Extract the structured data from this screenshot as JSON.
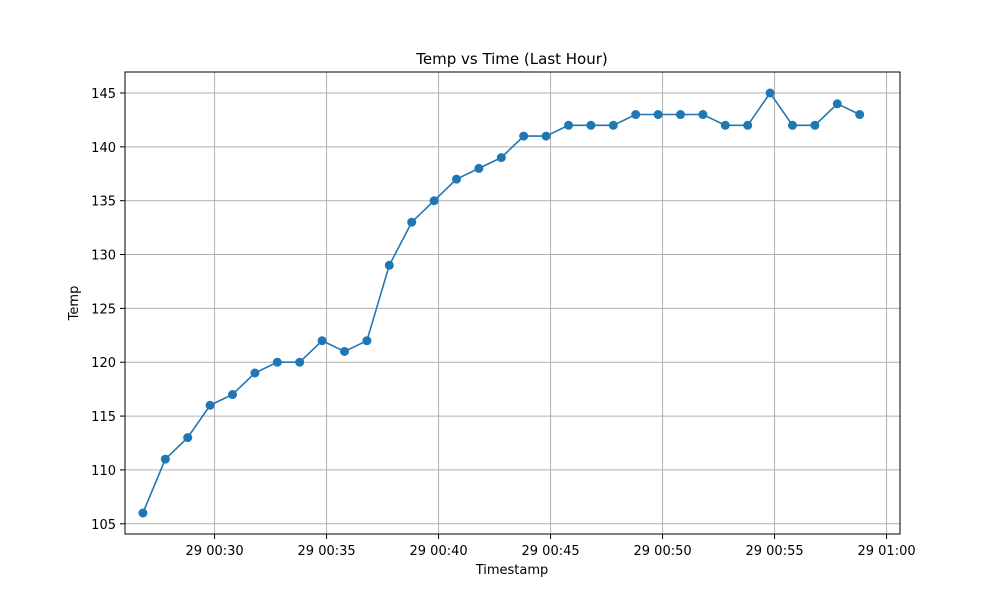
{
  "chart_data": {
    "type": "line",
    "title": "Temp vs Time (Last Hour)",
    "xlabel": "Timestamp",
    "ylabel": "Temp",
    "grid": true,
    "color": "#1f77b4",
    "x_ticks": [
      "29 00:30",
      "29 00:35",
      "29 00:40",
      "29 00:45",
      "29 00:50",
      "29 00:55",
      "29 01:00"
    ],
    "y_ticks": [
      105,
      110,
      115,
      120,
      125,
      130,
      135,
      140,
      145
    ],
    "xlim": [
      "29 00:26:00",
      "29 01:00:36"
    ],
    "ylim": [
      104.05,
      146.95
    ],
    "series": [
      {
        "x": [
          "29 00:26:48",
          "29 00:27:48",
          "29 00:28:48",
          "29 00:29:48",
          "29 00:30:48",
          "29 00:31:48",
          "29 00:32:48",
          "29 00:33:48",
          "29 00:34:48",
          "29 00:35:48",
          "29 00:36:48",
          "29 00:37:48",
          "29 00:38:48",
          "29 00:39:48",
          "29 00:40:48",
          "29 00:41:48",
          "29 00:42:48",
          "29 00:43:48",
          "29 00:44:48",
          "29 00:45:48",
          "29 00:46:48",
          "29 00:47:48",
          "29 00:48:48",
          "29 00:49:48",
          "29 00:50:48",
          "29 00:51:48",
          "29 00:52:48",
          "29 00:53:48",
          "29 00:54:48",
          "29 00:55:48",
          "29 00:56:48",
          "29 00:57:48",
          "29 00:58:48"
        ],
        "values": [
          106,
          111,
          113,
          116,
          117,
          119,
          120,
          120,
          122,
          121,
          122,
          129,
          133,
          135,
          137,
          138,
          139,
          141,
          141,
          142,
          142,
          142,
          143,
          143,
          143,
          143,
          142,
          142,
          145,
          142,
          142,
          144,
          143
        ]
      }
    ]
  }
}
